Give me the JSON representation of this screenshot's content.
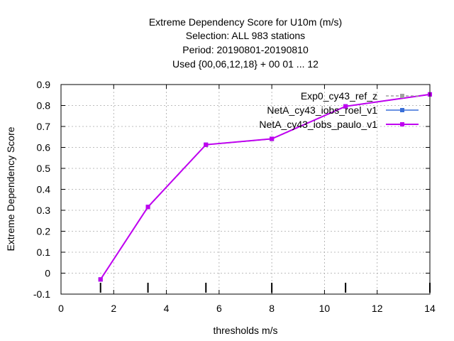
{
  "chart_data": {
    "type": "line",
    "title_lines": [
      "Extreme Dependency Score  for U10m (m/s)",
      "Selection: ALL    983 stations",
      "Period: 20190801-20190810",
      "Used {00,06,12,18} + 00 01 ... 12"
    ],
    "xlabel": "thresholds m/s",
    "ylabel": "Extreme Dependency Score",
    "xlim": [
      0,
      14
    ],
    "ylim": [
      -0.1,
      0.9
    ],
    "x_ticks": [
      0,
      2,
      4,
      6,
      8,
      10,
      12,
      14
    ],
    "y_ticks": [
      -0.1,
      0,
      0.1,
      0.2,
      0.3,
      0.4,
      0.5,
      0.6,
      0.7,
      0.8,
      0.9
    ],
    "x_tick_labels": [
      "0",
      "2",
      "4",
      "6",
      "8",
      "10",
      "12",
      "14"
    ],
    "y_tick_labels": [
      "-0.1",
      "0",
      "0.1",
      "0.2",
      "0.3",
      "0.4",
      "0.5",
      "0.6",
      "0.7",
      "0.8",
      "0.9"
    ],
    "grid": true,
    "legend_position": "top-right",
    "threshold_markers": [
      1.5,
      3.3,
      5.5,
      8,
      10.8,
      14
    ],
    "series": [
      {
        "name": "Exp0_cy43_ref_z",
        "color": "#a0a0a0",
        "dashed": true,
        "x": [
          1.5,
          3.3,
          5.5,
          8,
          10.8,
          14
        ],
        "y": [
          -0.03,
          0.315,
          0.612,
          0.64,
          0.795,
          0.853
        ]
      },
      {
        "name": "NetA_cy43_iobs_roel_v1",
        "color": "#3a6fd8",
        "dashed": false,
        "x": [
          1.5,
          3.3,
          5.5,
          8,
          10.8,
          14
        ],
        "y": [
          -0.03,
          0.316,
          0.613,
          0.641,
          0.796,
          0.853
        ]
      },
      {
        "name": "NetA_cy43_iobs_paulo_v1",
        "color": "#c000f0",
        "dashed": false,
        "x": [
          1.5,
          3.3,
          5.5,
          8,
          10.8,
          14
        ],
        "y": [
          -0.03,
          0.316,
          0.613,
          0.641,
          0.796,
          0.853
        ]
      }
    ]
  }
}
